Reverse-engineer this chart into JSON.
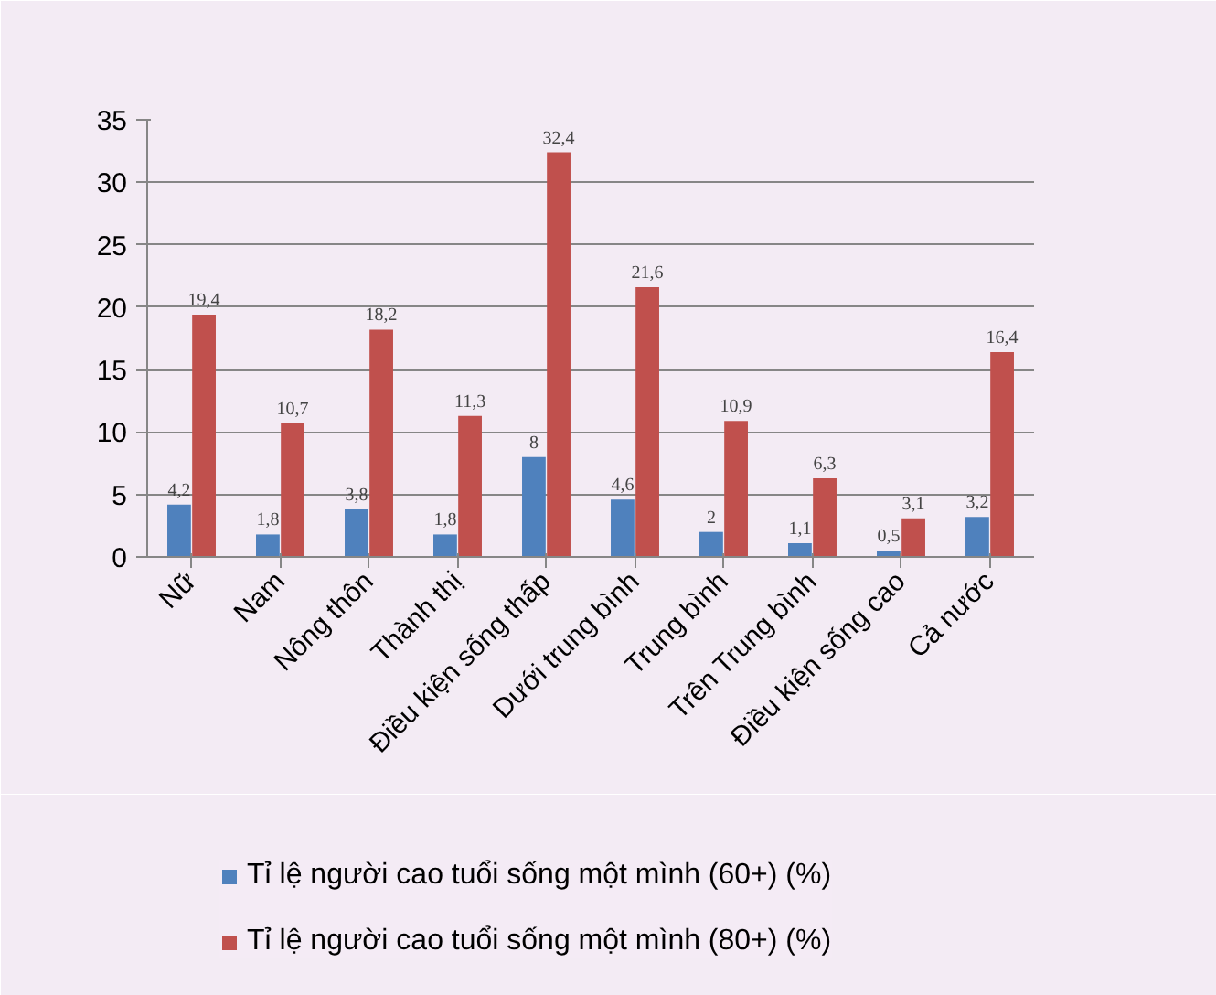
{
  "chart_data": {
    "type": "bar",
    "categories": [
      "Nữ",
      "Nam",
      "Nông thôn",
      "Thành thị",
      "Điều kiện sống thấp",
      "Dưới trung bình",
      "Trung bình",
      "Trên Trung bình",
      "Điều kiện sống cao",
      "Cả nước"
    ],
    "series": [
      {
        "name": "Tỉ lệ người cao tuổi sống một mình (60+) (%)",
        "color": "#4f81bd",
        "values": [
          4.2,
          1.8,
          3.8,
          1.8,
          8,
          4.6,
          2,
          1.1,
          0.5,
          3.2
        ],
        "value_labels": [
          "4,2",
          "1,8",
          "3,8",
          "1,8",
          "8",
          "4,6",
          "2",
          "1,1",
          "0,5",
          "3,2"
        ]
      },
      {
        "name": "Tỉ lệ người cao tuổi sống một mình (80+) (%)",
        "color": "#c0504d",
        "values": [
          19.4,
          10.7,
          18.2,
          11.3,
          32.4,
          21.6,
          10.9,
          6.3,
          3.1,
          16.4
        ],
        "value_labels": [
          "19,4",
          "10,7",
          "18,2",
          "11,3",
          "32,4",
          "21,6",
          "10,9",
          "6,3",
          "3,1",
          "16,4"
        ]
      }
    ],
    "ylim": [
      0,
      35
    ],
    "yticks": [
      0,
      5,
      10,
      15,
      20,
      25,
      30,
      35
    ],
    "grid": "y",
    "legend": "bottom"
  }
}
